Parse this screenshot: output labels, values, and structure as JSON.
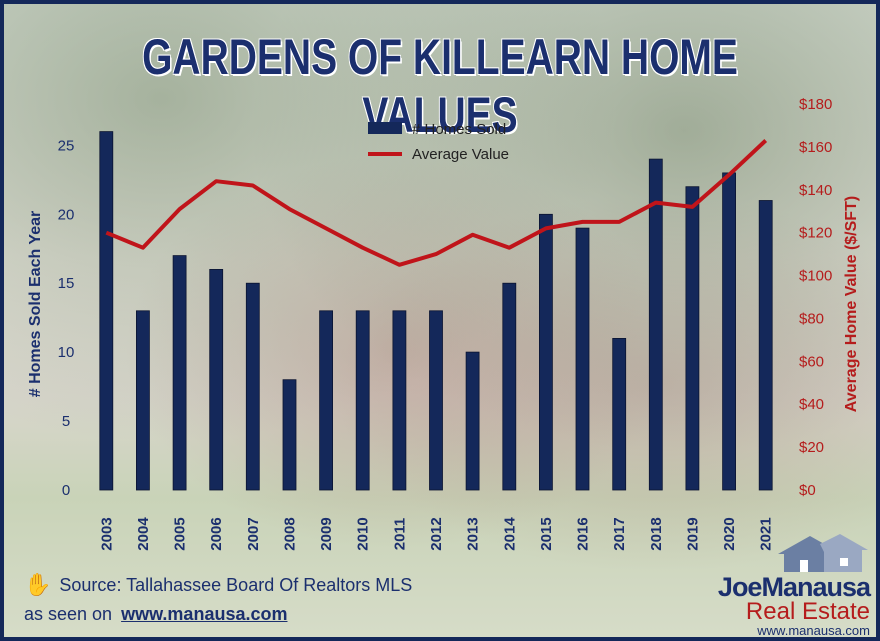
{
  "title": "GARDENS OF KILLEARN HOME VALUES",
  "colors": {
    "bars": "#14285a",
    "line": "#c0141a",
    "left_axis": "#1b2f6e",
    "right_axis": "#b51c1c",
    "frame": "#14285a"
  },
  "chart_data": {
    "type": "bar",
    "categories": [
      "2003",
      "2004",
      "2005",
      "2006",
      "2007",
      "2008",
      "2009",
      "2010",
      "2011",
      "2012",
      "2013",
      "2014",
      "2015",
      "2016",
      "2017",
      "2018",
      "2019",
      "2020",
      "2021"
    ],
    "series": [
      {
        "name": "# Homes Sold",
        "type": "bar",
        "axis": "left",
        "values": [
          26,
          13,
          17,
          16,
          15,
          8,
          13,
          13,
          13,
          13,
          10,
          15,
          20,
          19,
          11,
          24,
          22,
          23,
          21
        ]
      },
      {
        "name": "Average Value",
        "type": "line",
        "axis": "right",
        "values": [
          120,
          113,
          131,
          144,
          142,
          131,
          122,
          113,
          105,
          110,
          119,
          113,
          122,
          125,
          125,
          134,
          132,
          147,
          163
        ]
      }
    ],
    "ylabel_left": "# Homes Sold Each Year",
    "ylabel_right": "Average Home Value ($/SFT)",
    "ylim_left": [
      0,
      28
    ],
    "yticks_left": [
      "0",
      "5",
      "10",
      "15",
      "20",
      "25"
    ],
    "ylim_right": [
      0,
      180
    ],
    "yticks_right": [
      "$0",
      "$20",
      "$40",
      "$60",
      "$80",
      "$100",
      "$120",
      "$140",
      "$160",
      "$180"
    ],
    "legend": [
      "# Homes Sold",
      "Average Value"
    ],
    "legend_position": "top-center",
    "grid": false
  },
  "source_text": "Source: Tallahassee Board Of Realtors MLS",
  "seen_on_prefix": "as seen on",
  "seen_on_link": "www.manausa.com",
  "logo": {
    "joe": "Joe",
    "manausa": "Manausa",
    "real_estate": "Real Estate",
    "url": "www.manausa.com"
  }
}
